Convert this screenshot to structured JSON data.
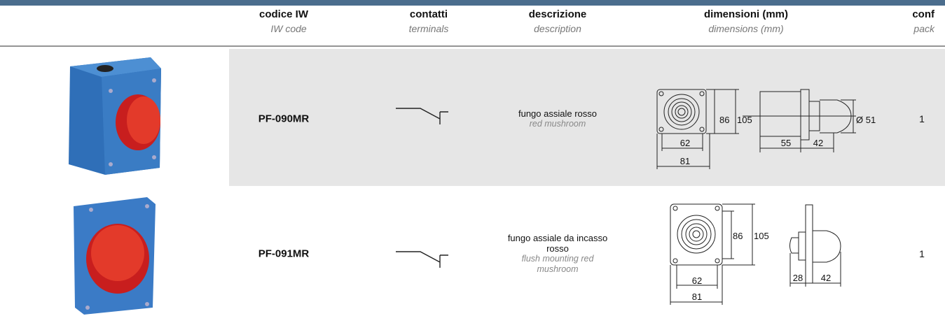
{
  "header": {
    "columns": [
      {
        "title": "codice IW",
        "subtitle": "IW code"
      },
      {
        "title": "contatti",
        "subtitle": "terminals"
      },
      {
        "title": "descrizione",
        "subtitle": "description"
      },
      {
        "title": "dimensioni (mm)",
        "subtitle": "dimensions (mm)"
      },
      {
        "title": "conf",
        "subtitle": "pack"
      }
    ]
  },
  "rows": [
    {
      "code": "PF-090MR",
      "description": "fungo assiale rosso",
      "description_en": "red mushroom",
      "dimensions": [
        "86",
        "105",
        "Ø 51",
        "62",
        "81",
        "55",
        "42"
      ],
      "pack": "1"
    },
    {
      "code": "PF-091MR",
      "description": "fungo assiale da incasso rosso",
      "description_en": "flush mounting red mushroom",
      "dimensions": [
        "86",
        "105",
        "62",
        "81",
        "28",
        "42"
      ],
      "pack": "1"
    }
  ]
}
